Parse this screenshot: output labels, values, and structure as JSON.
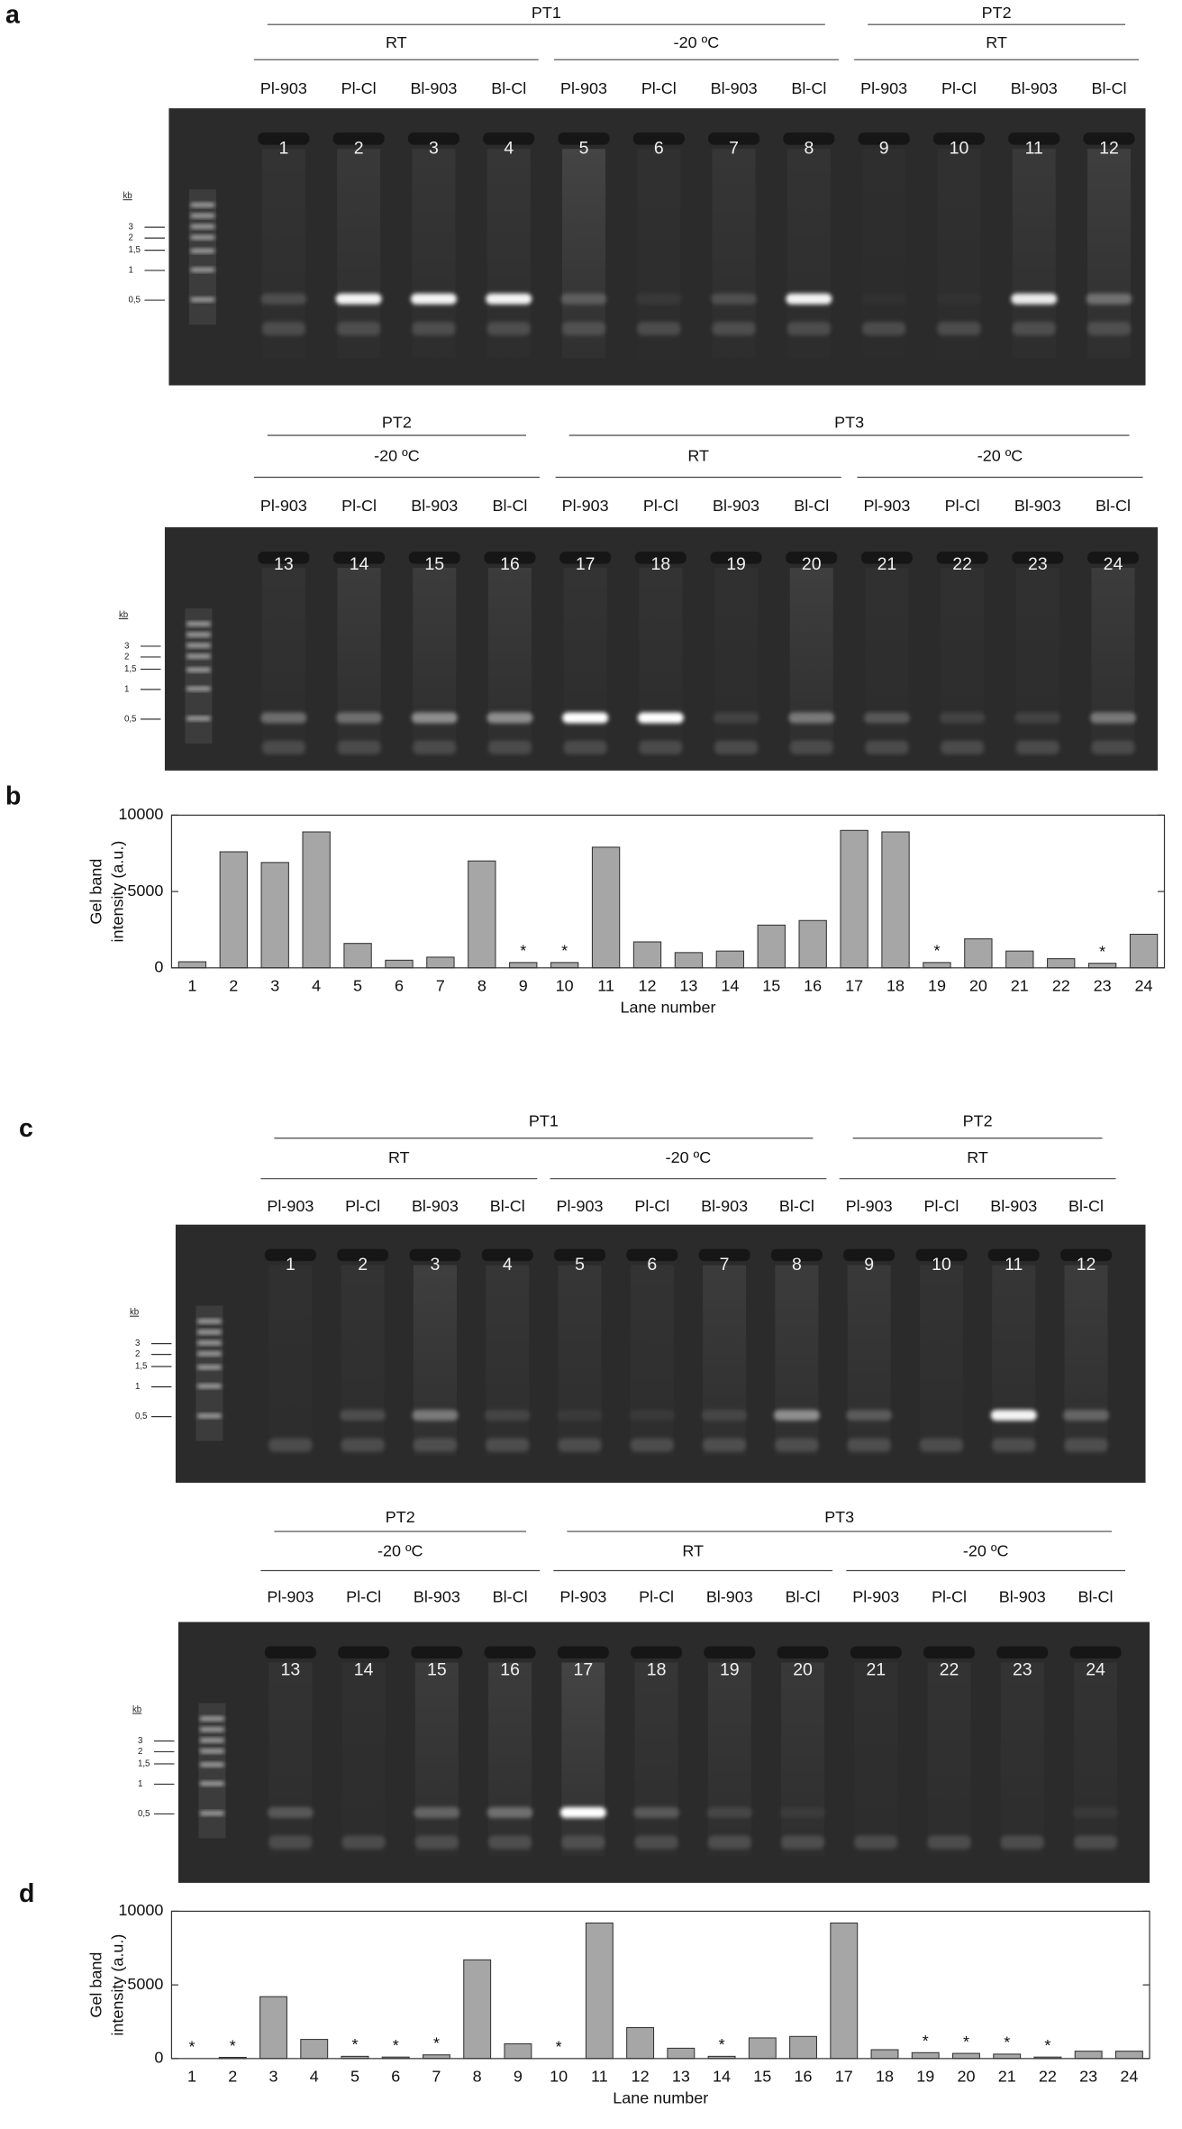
{
  "panels": [
    "a",
    "b",
    "c",
    "d"
  ],
  "gels": [
    {
      "ladder": {
        "unit": "kb",
        "sizes": [
          "3",
          "2",
          "1,5",
          "1",
          "0,5"
        ]
      },
      "groups": [
        {
          "label": "PT1",
          "subgroups": [
            {
              "label": "RT",
              "samples": [
                "Pl-903",
                "Pl-Cl",
                "Bl-903",
                "Bl-Cl"
              ],
              "lanes": [
                "1",
                "2",
                "3",
                "4"
              ]
            },
            {
              "label": "-20 ºC",
              "samples": [
                "Pl-903",
                "Pl-Cl",
                "Bl-903",
                "Bl-Cl"
              ],
              "lanes": [
                "5",
                "6",
                "7",
                "8"
              ]
            }
          ]
        },
        {
          "label": "PT2",
          "subgroups": [
            {
              "label": "RT",
              "samples": [
                "Pl-903",
                "Pl-Cl",
                "Bl-903",
                "Bl-Cl"
              ],
              "lanes": [
                "9",
                "10",
                "11",
                "12"
              ]
            }
          ]
        }
      ]
    },
    {
      "ladder": {
        "unit": "kb",
        "sizes": [
          "3",
          "2",
          "1,5",
          "1",
          "0,5"
        ]
      },
      "groups": [
        {
          "label": "PT2",
          "subgroups": [
            {
              "label": "-20 ºC",
              "samples": [
                "Pl-903",
                "Pl-Cl",
                "Bl-903",
                "Bl-Cl"
              ],
              "lanes": [
                "13",
                "14",
                "15",
                "16"
              ]
            }
          ]
        },
        {
          "label": "PT3",
          "subgroups": [
            {
              "label": "RT",
              "samples": [
                "Pl-903",
                "Pl-Cl",
                "Bl-903",
                "Bl-Cl"
              ],
              "lanes": [
                "17",
                "18",
                "19",
                "20"
              ]
            },
            {
              "label": "-20 ºC",
              "samples": [
                "Pl-903",
                "Pl-Cl",
                "Bl-903",
                "Bl-Cl"
              ],
              "lanes": [
                "21",
                "22",
                "23",
                "24"
              ]
            }
          ]
        }
      ]
    },
    {
      "ladder": {
        "unit": "kb",
        "sizes": [
          "3",
          "2",
          "1,5",
          "1",
          "0,5"
        ]
      },
      "groups": [
        {
          "label": "PT1",
          "subgroups": [
            {
              "label": "RT",
              "samples": [
                "Pl-903",
                "Pl-Cl",
                "Bl-903",
                "Bl-Cl"
              ],
              "lanes": [
                "1",
                "2",
                "3",
                "4"
              ]
            },
            {
              "label": "-20 ºC",
              "samples": [
                "Pl-903",
                "Pl-Cl",
                "Bl-903",
                "Bl-Cl"
              ],
              "lanes": [
                "5",
                "6",
                "7",
                "8"
              ]
            }
          ]
        },
        {
          "label": "PT2",
          "subgroups": [
            {
              "label": "RT",
              "samples": [
                "Pl-903",
                "Pl-Cl",
                "Bl-903",
                "Bl-Cl"
              ],
              "lanes": [
                "9",
                "10",
                "11",
                "12"
              ]
            }
          ]
        }
      ]
    },
    {
      "ladder": {
        "unit": "kb",
        "sizes": [
          "3",
          "2",
          "1,5",
          "1",
          "0,5"
        ]
      },
      "groups": [
        {
          "label": "PT2",
          "subgroups": [
            {
              "label": "-20 ºC",
              "samples": [
                "Pl-903",
                "Pl-Cl",
                "Bl-903",
                "Bl-Cl"
              ],
              "lanes": [
                "13",
                "14",
                "15",
                "16"
              ]
            }
          ]
        },
        {
          "label": "PT3",
          "subgroups": [
            {
              "label": "RT",
              "samples": [
                "Pl-903",
                "Pl-Cl",
                "Bl-903",
                "Bl-Cl"
              ],
              "lanes": [
                "17",
                "18",
                "19",
                "20"
              ]
            },
            {
              "label": "-20 ºC",
              "samples": [
                "Pl-903",
                "Pl-Cl",
                "Bl-903",
                "Bl-Cl"
              ],
              "lanes": [
                "21",
                "22",
                "23",
                "24"
              ]
            }
          ]
        }
      ]
    }
  ],
  "chart_data": [
    {
      "type": "bar",
      "xlabel": "Lane number",
      "ylabel": [
        "Gel band",
        "intensity (a.u.)"
      ],
      "color": "#a6a6a6",
      "categories": [
        "1",
        "2",
        "3",
        "4",
        "5",
        "6",
        "7",
        "8",
        "9",
        "10",
        "11",
        "12",
        "13",
        "14",
        "15",
        "16",
        "17",
        "18",
        "19",
        "20",
        "21",
        "22",
        "23",
        "24"
      ],
      "values": [
        400,
        7600,
        6900,
        8900,
        1600,
        500,
        700,
        7000,
        350,
        350,
        7900,
        1700,
        1000,
        1100,
        2800,
        3100,
        9000,
        8900,
        350,
        1900,
        1100,
        600,
        300,
        2200
      ],
      "annotations": [
        {
          "text": "*",
          "category": "9"
        },
        {
          "text": "*",
          "category": "10"
        },
        {
          "text": "*",
          "category": "19"
        },
        {
          "text": "*",
          "category": "23"
        }
      ],
      "ylim": [
        0,
        10000
      ],
      "yticks": [
        0,
        5000,
        10000
      ]
    },
    {
      "type": "bar",
      "xlabel": "Lane number",
      "ylabel": [
        "Gel band",
        "intensity (a.u.)"
      ],
      "color": "#a6a6a6",
      "categories": [
        "1",
        "2",
        "3",
        "4",
        "5",
        "6",
        "7",
        "8",
        "9",
        "10",
        "11",
        "12",
        "13",
        "14",
        "15",
        "16",
        "17",
        "18",
        "19",
        "20",
        "21",
        "22",
        "23",
        "24"
      ],
      "values": [
        0,
        80,
        4200,
        1300,
        150,
        100,
        250,
        6700,
        1000,
        0,
        9200,
        2100,
        700,
        150,
        1400,
        1500,
        9200,
        600,
        400,
        350,
        300,
        100,
        500,
        500
      ],
      "annotations": [
        {
          "text": "*",
          "category": "1"
        },
        {
          "text": "*",
          "category": "2"
        },
        {
          "text": "*",
          "category": "5"
        },
        {
          "text": "*",
          "category": "6"
        },
        {
          "text": "*",
          "category": "7"
        },
        {
          "text": "*",
          "category": "10"
        },
        {
          "text": "*",
          "category": "14"
        },
        {
          "text": "*",
          "category": "19"
        },
        {
          "text": "*",
          "category": "20"
        },
        {
          "text": "*",
          "category": "21"
        },
        {
          "text": "*",
          "category": "22"
        }
      ],
      "ylim": [
        0,
        10000
      ],
      "yticks": [
        0,
        5000,
        10000
      ]
    }
  ]
}
